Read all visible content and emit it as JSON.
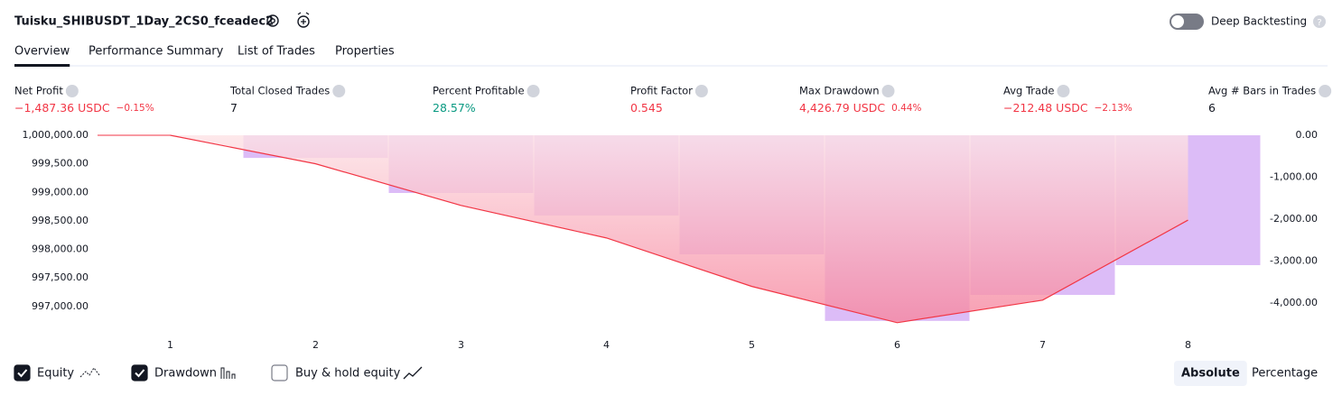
{
  "header": {
    "title": "Tuisku_SHIBUSDT_1Day_2CS0_fceadec2",
    "toggle_label": "Deep Backtesting",
    "toggle_on": false
  },
  "tabs": {
    "items": [
      "Overview",
      "Performance Summary",
      "List of Trades",
      "Properties"
    ],
    "active": 0
  },
  "metrics": [
    {
      "label": "Net Profit",
      "value": "−1,487.36 USDC",
      "percent": "−0.15%",
      "color": "#f23645"
    },
    {
      "label": "Total Closed Trades",
      "value": "7",
      "color": "#131722"
    },
    {
      "label": "Percent Profitable",
      "value": "28.57%",
      "color": "#089981"
    },
    {
      "label": "Profit Factor",
      "value": "0.545",
      "color": "#f23645"
    },
    {
      "label": "Max Drawdown",
      "value": "4,426.79 USDC",
      "percent": "0.44%",
      "color": "#f23645"
    },
    {
      "label": "Avg Trade",
      "value": "−212.48 USDC",
      "percent": "−2.13%",
      "color": "#f23645"
    },
    {
      "label": "Avg # Bars in Trades",
      "value": "6",
      "color": "#131722"
    }
  ],
  "chart_data": {
    "type": "combo",
    "categories": [
      "1",
      "2",
      "3",
      "4",
      "5",
      "6",
      "7",
      "8"
    ],
    "series": [
      {
        "name": "Equity",
        "kind": "line",
        "color": "#f23645",
        "visible": true,
        "values": [
          1000000,
          999500,
          998770,
          998200,
          997350,
          996715,
          997110,
          998512.64
        ]
      },
      {
        "name": "Drawdown",
        "kind": "bar",
        "axis": "y2",
        "color": "#dcbcf7",
        "visible": true,
        "values": [
          0,
          -540,
          -1376,
          -1914,
          -2839,
          -4426.79,
          -3806,
          -3097
        ]
      }
    ],
    "ylim": [
      996680,
      1000000
    ],
    "yticks": [
      {
        "value": 1000000,
        "label": "1,000,000.00"
      },
      {
        "value": 999500,
        "label": "999,500.00"
      },
      {
        "value": 999000,
        "label": "999,000.00"
      },
      {
        "value": 998500,
        "label": "998,500.00"
      },
      {
        "value": 998000,
        "label": "998,000.00"
      },
      {
        "value": 997500,
        "label": "997,500.00"
      },
      {
        "value": 997000,
        "label": "997,000.00"
      }
    ],
    "y2lim": [
      -4516,
      0
    ],
    "y2ticks": [
      {
        "value": 0,
        "label": "0.00"
      },
      {
        "value": -1000,
        "label": "-1,000.00"
      },
      {
        "value": -2000,
        "label": "-2,000.00"
      },
      {
        "value": -3000,
        "label": "-3,000.00"
      },
      {
        "value": -4000,
        "label": "-4,000.00"
      }
    ],
    "grid": false
  },
  "footer": {
    "buy_hold_label": "Buy & hold equity",
    "buy_hold_checked": false,
    "modes": [
      "Absolute",
      "Percentage"
    ],
    "active_mode": 0
  }
}
